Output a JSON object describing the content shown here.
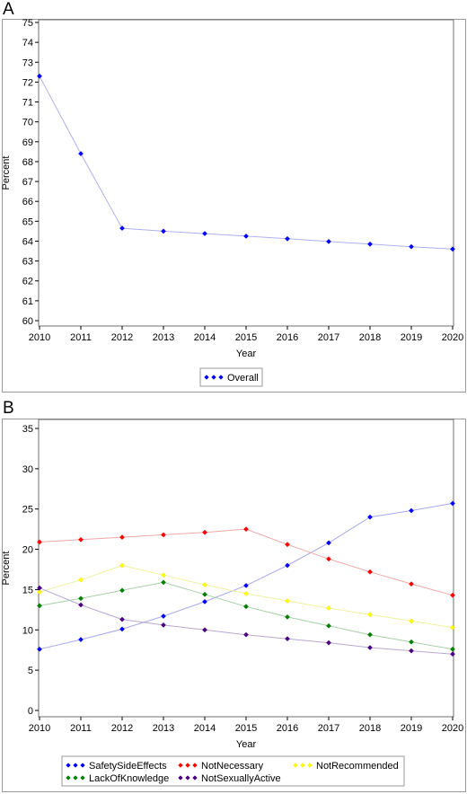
{
  "chart_data": [
    {
      "panel_label": "A",
      "type": "line",
      "xlabel": "Year",
      "ylabel": "Percent",
      "ylim": [
        60,
        75
      ],
      "y_ticks": [
        60,
        61,
        62,
        63,
        64,
        65,
        66,
        67,
        68,
        69,
        70,
        71,
        72,
        73,
        74,
        75
      ],
      "x": [
        "2010",
        "2011",
        "2012",
        "2013",
        "2014",
        "2015",
        "2016",
        "2017",
        "2018",
        "2019",
        "2020"
      ],
      "grid": false,
      "legend_position": "bottom",
      "series": [
        {
          "name": "Overall",
          "color": "#0000ff",
          "line_color": "#b0b0f0",
          "values": [
            72.3,
            68.4,
            64.65,
            64.5,
            64.38,
            64.25,
            64.12,
            63.98,
            63.85,
            63.72,
            63.6
          ]
        }
      ]
    },
    {
      "panel_label": "B",
      "type": "line",
      "xlabel": "Year",
      "ylabel": "Percent",
      "ylim": [
        0,
        35
      ],
      "y_ticks": [
        0,
        5,
        10,
        15,
        20,
        25,
        30,
        35
      ],
      "x": [
        "2010",
        "2011",
        "2012",
        "2013",
        "2014",
        "2015",
        "2016",
        "2017",
        "2018",
        "2019",
        "2020"
      ],
      "grid": false,
      "legend_position": "bottom",
      "series": [
        {
          "name": "SafetySideEffects",
          "color": "#0000ff",
          "line_color": "#a8a8f0",
          "values": [
            7.6,
            8.8,
            10.1,
            11.7,
            13.5,
            15.5,
            18.0,
            20.8,
            24.0,
            24.8,
            25.7
          ]
        },
        {
          "name": "NotNecessary",
          "color": "#ff0000",
          "line_color": "#f0a8a8",
          "values": [
            20.9,
            21.2,
            21.5,
            21.8,
            22.1,
            22.5,
            20.6,
            18.8,
            17.2,
            15.7,
            14.3
          ]
        },
        {
          "name": "NotRecommended",
          "color": "#ffff00",
          "line_color": "#f0f0a0",
          "values": [
            14.7,
            16.2,
            18.0,
            16.8,
            15.6,
            14.5,
            13.6,
            12.7,
            11.9,
            11.1,
            10.3
          ]
        },
        {
          "name": "LackOfKnowledge",
          "color": "#008000",
          "line_color": "#a8d0a8",
          "values": [
            13.0,
            13.9,
            14.9,
            15.9,
            14.4,
            12.9,
            11.6,
            10.5,
            9.4,
            8.5,
            7.6
          ]
        },
        {
          "name": "NotSexuallyActive",
          "color": "#4b0082",
          "line_color": "#b8a8d0",
          "values": [
            15.2,
            13.1,
            11.3,
            10.6,
            10.0,
            9.4,
            8.9,
            8.4,
            7.8,
            7.4,
            7.0
          ]
        }
      ]
    }
  ]
}
